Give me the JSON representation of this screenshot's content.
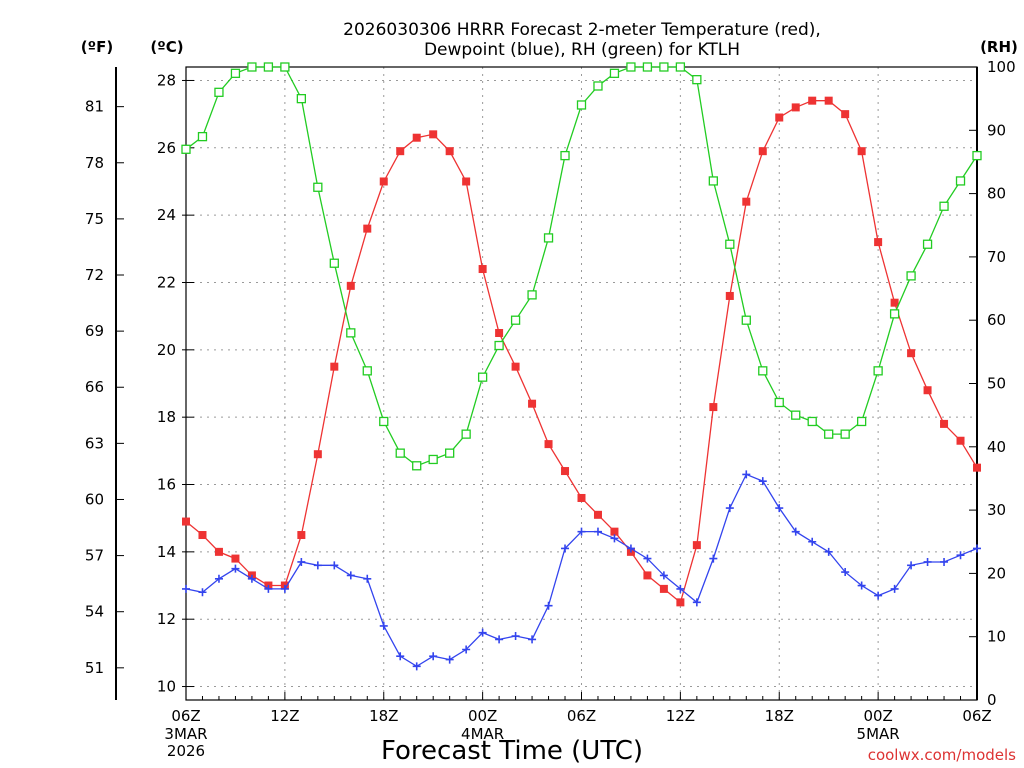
{
  "chart_data": {
    "type": "line",
    "title": [
      "2026030306 HRRR Forecast 2-meter Temperature (red),",
      "Dewpoint (blue), RH (green) for KTLH"
    ],
    "xlabel": "Forecast Time (UTC)",
    "credit": "coolwx.com/models",
    "units": {
      "f": "(ºF)",
      "c": "(ºC)",
      "rh": "(RH)"
    },
    "x_hours": [
      0,
      1,
      2,
      3,
      4,
      5,
      6,
      7,
      8,
      9,
      10,
      11,
      12,
      13,
      14,
      15,
      16,
      17,
      18,
      19,
      20,
      21,
      22,
      23,
      24,
      25,
      26,
      27,
      28,
      29,
      30,
      31,
      32,
      33,
      34,
      35,
      36,
      37,
      38,
      39,
      40,
      41,
      42,
      43,
      44,
      45,
      46,
      47,
      48
    ],
    "x_range_hours": [
      0,
      48
    ],
    "x_ticks": [
      {
        "h": 0,
        "label": "06Z"
      },
      {
        "h": 6,
        "label": "12Z"
      },
      {
        "h": 12,
        "label": "18Z"
      },
      {
        "h": 18,
        "label": "00Z"
      },
      {
        "h": 24,
        "label": "06Z"
      },
      {
        "h": 30,
        "label": "12Z"
      },
      {
        "h": 36,
        "label": "18Z"
      },
      {
        "h": 42,
        "label": "00Z"
      },
      {
        "h": 48,
        "label": "06Z"
      }
    ],
    "date_labels": [
      {
        "h": 0,
        "lines": [
          "3MAR",
          "2026"
        ]
      },
      {
        "h": 18,
        "lines": [
          "4MAR"
        ]
      },
      {
        "h": 42,
        "lines": [
          "5MAR"
        ]
      }
    ],
    "y_left_c": {
      "range": [
        9.6,
        28.4
      ],
      "ticks": [
        10,
        12,
        14,
        16,
        18,
        20,
        22,
        24,
        26,
        28
      ]
    },
    "y_left_f": {
      "ticks": [
        51,
        54,
        57,
        60,
        63,
        66,
        69,
        72,
        75,
        78,
        81
      ]
    },
    "y_right_rh": {
      "range": [
        0,
        100
      ],
      "ticks": [
        0,
        10,
        20,
        30,
        40,
        50,
        60,
        70,
        80,
        90,
        100
      ]
    },
    "grid": true,
    "series": [
      {
        "name": "2-meter Temperature",
        "axis": "c",
        "color": "#ee3333",
        "marker": "filled-square",
        "values": [
          14.9,
          14.5,
          14.0,
          13.8,
          13.3,
          13.0,
          13.0,
          14.5,
          16.9,
          19.5,
          21.9,
          23.6,
          25.0,
          25.9,
          26.3,
          26.4,
          25.9,
          25.0,
          22.4,
          20.5,
          19.5,
          18.4,
          17.2,
          16.4,
          15.6,
          15.1,
          14.6,
          14.0,
          13.3,
          12.9,
          12.5,
          14.2,
          18.3,
          21.6,
          24.4,
          25.9,
          26.9,
          27.2,
          27.4,
          27.4,
          27.0,
          25.9,
          23.2,
          21.4,
          19.9,
          18.8,
          17.8,
          17.3,
          16.5
        ]
      },
      {
        "name": "Dewpoint",
        "axis": "c",
        "color": "#3344ee",
        "marker": "plus",
        "values": [
          12.9,
          12.8,
          13.2,
          13.5,
          13.2,
          12.9,
          12.9,
          13.7,
          13.6,
          13.6,
          13.3,
          13.2,
          11.8,
          10.9,
          10.6,
          10.9,
          10.8,
          11.1,
          11.6,
          11.4,
          11.5,
          11.4,
          12.4,
          14.1,
          14.6,
          14.6,
          14.4,
          14.1,
          13.8,
          13.3,
          12.9,
          12.5,
          13.8,
          15.3,
          16.3,
          16.1,
          15.3,
          14.6,
          14.3,
          14.0,
          13.4,
          13.0,
          12.7,
          12.9,
          13.6,
          13.7,
          13.7,
          13.9,
          14.1
        ]
      },
      {
        "name": "Relative Humidity",
        "axis": "rh",
        "color": "#22cc22",
        "marker": "open-square",
        "values": [
          87,
          89,
          96,
          99,
          100,
          100,
          100,
          95,
          81,
          69,
          58,
          52,
          44,
          39,
          37,
          38,
          39,
          42,
          51,
          56,
          60,
          64,
          73,
          86,
          94,
          97,
          99,
          100,
          100,
          100,
          100,
          98,
          82,
          72,
          60,
          52,
          47,
          45,
          44,
          42,
          42,
          44,
          52,
          61,
          67,
          72,
          78,
          82,
          86
        ]
      }
    ]
  }
}
